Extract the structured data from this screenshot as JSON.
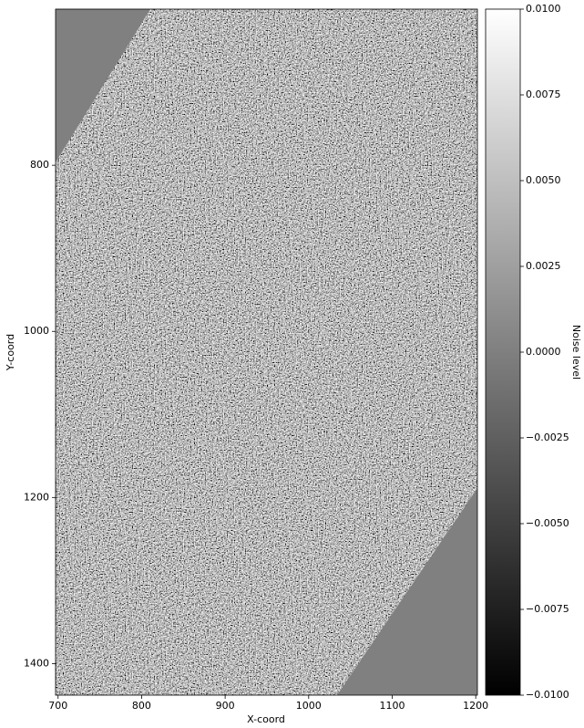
{
  "chart_data": {
    "type": "image",
    "xlabel": "X-coord",
    "ylabel": "Y-coord",
    "colorbar_label": "Noise level",
    "xlim": [
      697,
      1202
    ],
    "ylim": [
      1438,
      612
    ],
    "xticks": [
      700,
      800,
      900,
      1000,
      1100,
      1200
    ],
    "yticks": [
      800,
      1000,
      1200,
      1400
    ],
    "clim": [
      -0.01,
      0.01
    ],
    "cmap": [
      "#000000",
      "#ffffff"
    ],
    "cticks": [
      {
        "value": 0.01,
        "label": "0.0100"
      },
      {
        "value": 0.0075,
        "label": "0.0075"
      },
      {
        "value": 0.005,
        "label": "0.0050"
      },
      {
        "value": 0.0025,
        "label": "0.0025"
      },
      {
        "value": 0,
        "label": "0.0000"
      },
      {
        "value": -0.0025,
        "label": "−0.0025"
      },
      {
        "value": -0.005,
        "label": "−0.0050"
      },
      {
        "value": -0.0075,
        "label": "−0.0075"
      },
      {
        "value": -0.01,
        "label": "−0.0100"
      }
    ]
  }
}
